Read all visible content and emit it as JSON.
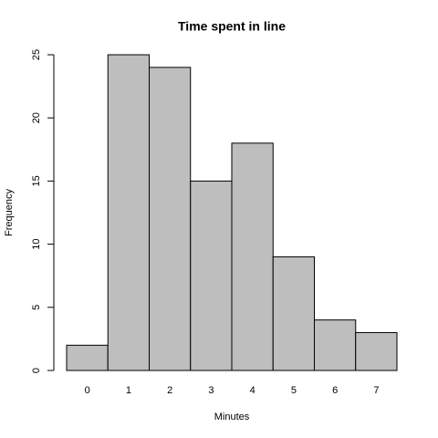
{
  "chart_data": {
    "type": "bar",
    "title": "Time spent in line",
    "x_label": "Minutes",
    "y_label": "Frequency",
    "categories": [
      "0",
      "1",
      "2",
      "3",
      "4",
      "5",
      "6",
      "7"
    ],
    "values": [
      2,
      25,
      24,
      15,
      18,
      9,
      4,
      3
    ],
    "color": "#bebebe",
    "ylim": [
      0,
      25
    ],
    "yticks": [
      0,
      5,
      10,
      15,
      20,
      25
    ],
    "grid": false
  }
}
